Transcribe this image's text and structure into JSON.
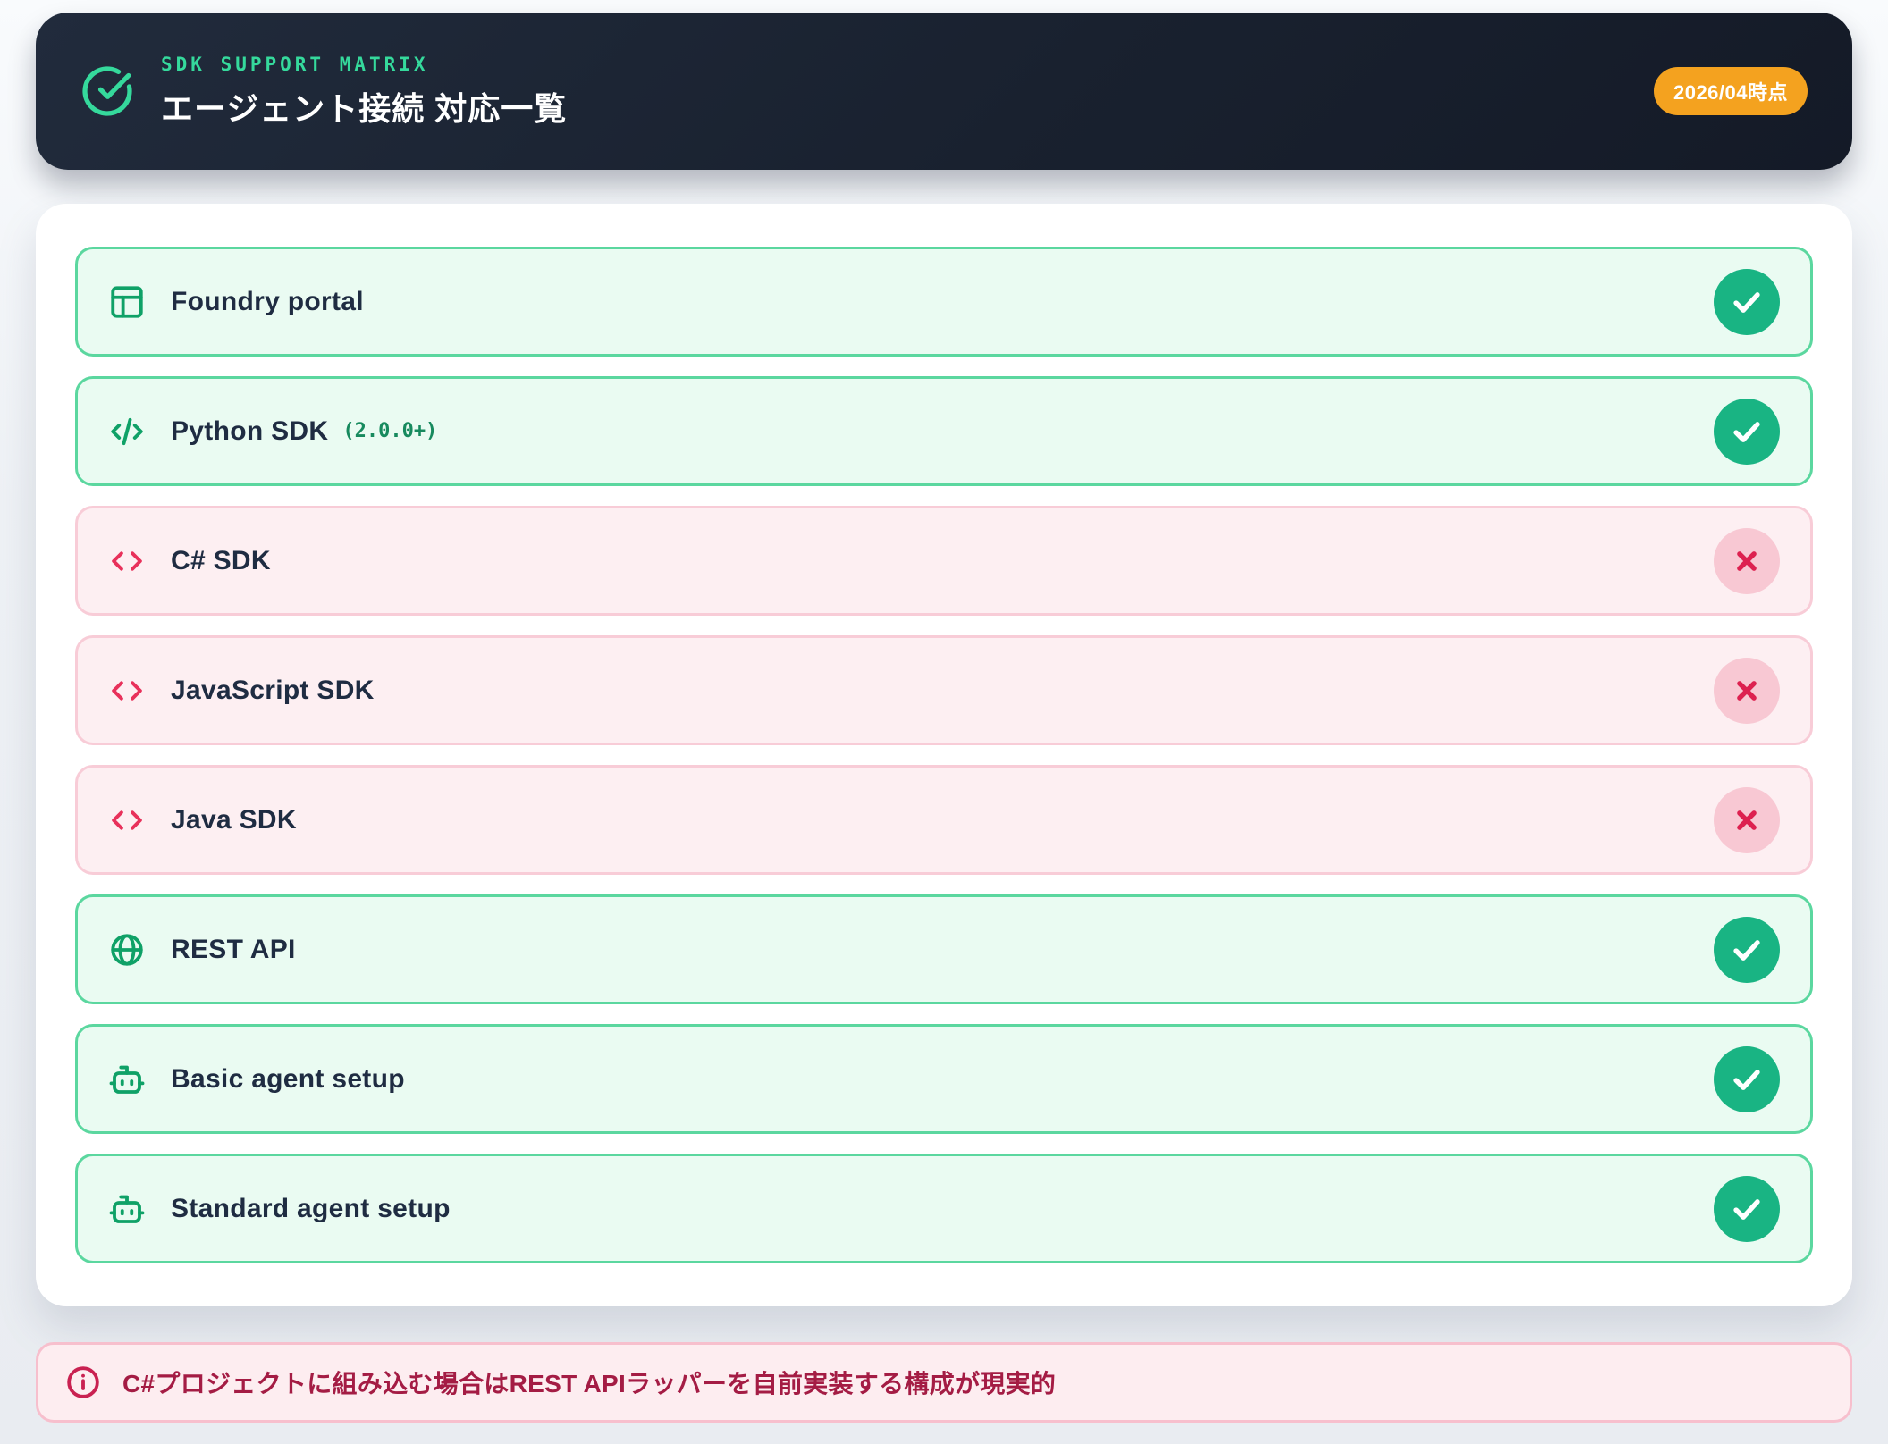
{
  "header": {
    "eyebrow": "SDK SUPPORT MATRIX",
    "title": "エージェント接続 対応一覧",
    "badge": "2026/04時点",
    "icon": "check-circle-icon",
    "colors": {
      "bg": "#19212f",
      "accent": "#35d99c",
      "badge_bg": "#f4a21f",
      "title": "#ffffff"
    }
  },
  "matrix": {
    "rows": [
      {
        "label": "Foundry portal",
        "version": "",
        "icon": "layout-icon",
        "supported": true
      },
      {
        "label": "Python SDK",
        "version": "(2.0.0+)",
        "icon": "code-icon",
        "supported": true
      },
      {
        "label": "C# SDK",
        "version": "",
        "icon": "brackets-icon",
        "supported": false
      },
      {
        "label": "JavaScript SDK",
        "version": "",
        "icon": "brackets-icon",
        "supported": false
      },
      {
        "label": "Java SDK",
        "version": "",
        "icon": "brackets-icon",
        "supported": false
      },
      {
        "label": "REST API",
        "version": "",
        "icon": "globe-icon",
        "supported": true
      },
      {
        "label": "Basic agent setup",
        "version": "",
        "icon": "robot-icon",
        "supported": true
      },
      {
        "label": "Standard agent setup",
        "version": "",
        "icon": "robot-icon",
        "supported": true
      }
    ],
    "colors": {
      "supported_bg": "#eafbf2",
      "supported_border": "#5bd79f",
      "supported_badge": "#19b483",
      "unsupported_bg": "#fdeff2",
      "unsupported_border": "#f8ccd7",
      "unsupported_badge_bg": "#f8c8d3",
      "unsupported_badge_x": "#dd2150",
      "label": "#1f2c42",
      "version": "#178a5e"
    }
  },
  "note": {
    "text": "C#プロジェクトに組み込む場合はREST APIラッパーを自前実装する構成が現実的",
    "icon": "info-icon",
    "colors": {
      "bg": "#fdedf0",
      "border": "#f7bfcd",
      "text": "#a41c44"
    }
  }
}
